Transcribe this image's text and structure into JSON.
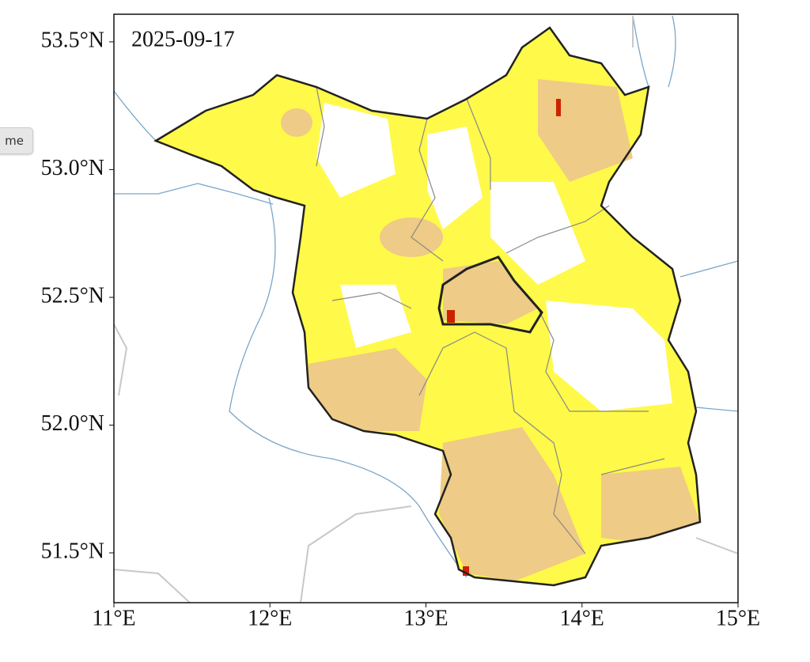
{
  "map": {
    "date": "2025-09-17",
    "button": "me",
    "lonlim": [
      11,
      15
    ],
    "latlim": [
      51.305,
      53.608
    ],
    "lon_ticks": [
      {
        "value": 11,
        "label": "11°E"
      },
      {
        "value": 12,
        "label": "12°E"
      },
      {
        "value": 13,
        "label": "13°E"
      },
      {
        "value": 14,
        "label": "14°E"
      },
      {
        "value": 15,
        "label": "15°E"
      }
    ],
    "lat_ticks": [
      {
        "value": 51.5,
        "label": "51.5°N"
      },
      {
        "value": 52.0,
        "label": "52.0°N"
      },
      {
        "value": 52.5,
        "label": "52.5°N"
      },
      {
        "value": 53.0,
        "label": "53.0°N"
      },
      {
        "value": 53.5,
        "label": "53.5°N"
      }
    ]
  }
}
